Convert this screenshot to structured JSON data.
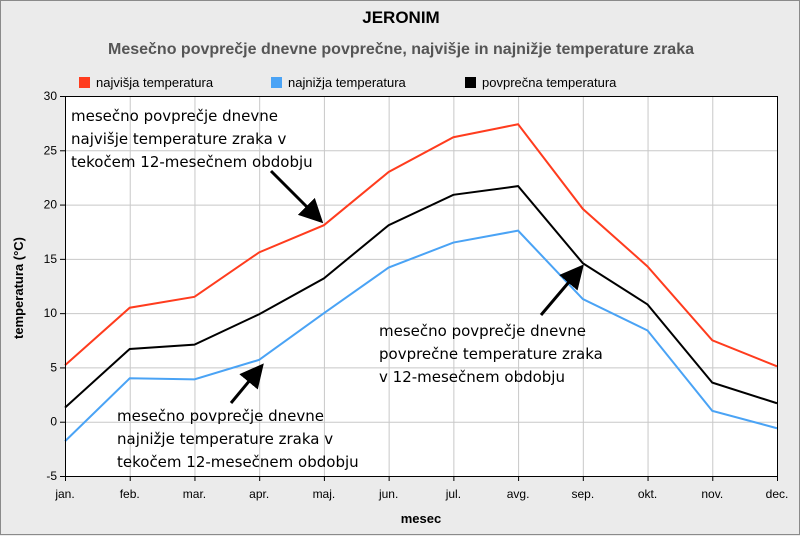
{
  "chart_data": {
    "type": "line",
    "title": "JERONIM",
    "subtitle": "Mesečno povprečje dnevne povprečne, najvišje in najnižje temperature zraka",
    "xlabel": "mesec",
    "ylabel": "temperatura (°C)",
    "ylim": [
      -5,
      30
    ],
    "yticks": [
      -5,
      0,
      5,
      10,
      15,
      20,
      25,
      30
    ],
    "grid": true,
    "legend_position": "top",
    "categories": [
      "jan.",
      "feb.",
      "mar.",
      "apr.",
      "maj.",
      "jun.",
      "jul.",
      "avg.",
      "sep.",
      "okt.",
      "nov.",
      "dec."
    ],
    "series": [
      {
        "name": "najvišja temperatura",
        "color": "#ff3c1e",
        "values": [
          5.2,
          10.5,
          11.5,
          15.6,
          18.1,
          23.0,
          26.2,
          27.4,
          19.6,
          14.3,
          7.5,
          5.1
        ]
      },
      {
        "name": "najnižja temperatura",
        "color": "#4aa3f5",
        "values": [
          -1.8,
          4.0,
          3.9,
          5.7,
          10.0,
          14.2,
          16.5,
          17.6,
          11.3,
          8.4,
          1.0,
          -0.6
        ]
      },
      {
        "name": "povprečna temperatura",
        "color": "#000000",
        "values": [
          1.3,
          6.7,
          7.1,
          9.9,
          13.2,
          18.1,
          20.9,
          21.7,
          14.6,
          10.8,
          3.6,
          1.7
        ]
      }
    ],
    "annotations": [
      {
        "id": "max",
        "lines": [
          "mesečno povprečje dnevne",
          "najvišje temperature zraka v",
          "tekočem 12-mesečnem obdobju"
        ]
      },
      {
        "id": "avg",
        "lines": [
          "mesečno povprečje dnevne",
          "povprečne temperature zraka",
          "v 12-mesečnem obdobju"
        ]
      },
      {
        "id": "min",
        "lines": [
          "mesečno povprečje dnevne",
          "najnižje temperature zraka v",
          "tekočem 12-mesečnem obdobju"
        ]
      }
    ]
  }
}
